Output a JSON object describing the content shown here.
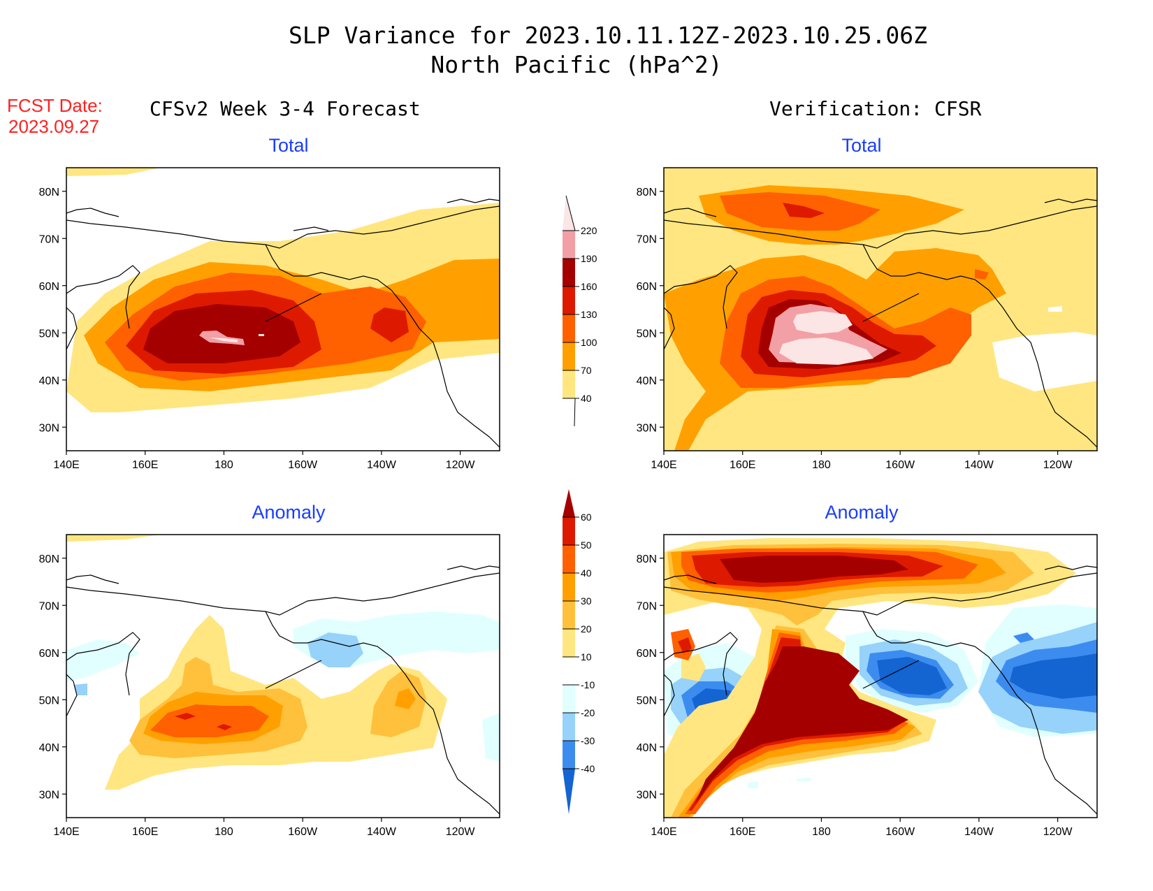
{
  "header": {
    "title_line1": "SLP Variance for 2023.10.11.12Z-2023.10.25.06Z",
    "title_line2": "North Pacific (hPa^2)",
    "fcst_label": "FCST Date:",
    "fcst_date": "2023.09.27",
    "left_column_title": "CFSv2 Week 3-4 Forecast",
    "right_column_title": "Verification: CFSR"
  },
  "colors": {
    "title": "#000000",
    "fcst": "#ff2020",
    "panel_title": "#1a3cff"
  },
  "axes": {
    "lon_ticks": [
      "140E",
      "160E",
      "180",
      "160W",
      "140W",
      "120W"
    ],
    "lat_ticks": [
      "80N",
      "70N",
      "60N",
      "50N",
      "40N",
      "30N"
    ]
  },
  "panels": [
    {
      "id": "forecast-total",
      "title": "Total",
      "field": "total"
    },
    {
      "id": "verification-total",
      "title": "Total",
      "field": "total"
    },
    {
      "id": "forecast-anomaly",
      "title": "Anomaly",
      "field": "anomaly"
    },
    {
      "id": "verification-anomaly",
      "title": "Anomaly",
      "field": "anomaly"
    }
  ],
  "colorbars": {
    "total": {
      "labels": [
        "40",
        "70",
        "100",
        "130",
        "160",
        "190",
        "220"
      ],
      "colors": [
        "#ffe680",
        "#ffa000",
        "#ff6000",
        "#dd1a00",
        "#a50000",
        "#f2a0a5",
        "#fbe5e5"
      ]
    },
    "anomaly": {
      "labels": [
        "-40",
        "-30",
        "-20",
        "-10",
        "10",
        "20",
        "30",
        "40",
        "50",
        "60"
      ],
      "colors": [
        "#1464d2",
        "#3c8cf0",
        "#96d2fa",
        "#e1ffff",
        "#ffffff",
        "#ffe680",
        "#ffc03c",
        "#ffa000",
        "#ff6000",
        "#dd1a00",
        "#a50000"
      ]
    }
  }
}
